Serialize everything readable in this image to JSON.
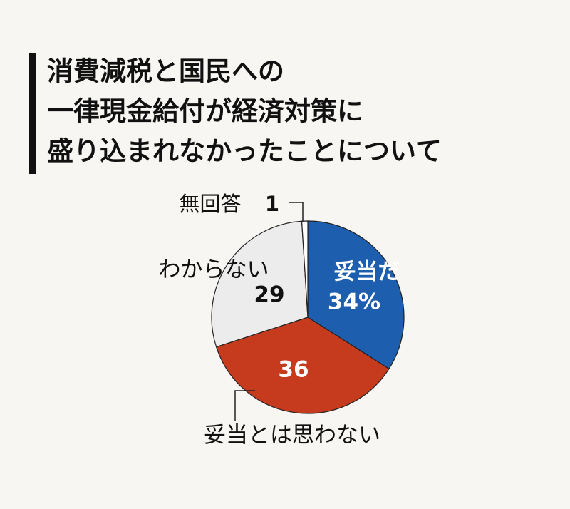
{
  "chart_data": {
    "type": "pie",
    "title_lines": [
      "消費減税と国民への",
      "一律現金給付が経済対策に",
      "盛り込まれなかったことについて"
    ],
    "categories": [
      "妥当だ",
      "妥当とは思わない",
      "わからない",
      "無回答"
    ],
    "values": [
      34,
      36,
      29,
      1
    ],
    "value_labels": [
      "34%",
      "36",
      "29",
      "1"
    ],
    "colors": [
      "#1d5fae",
      "#c63a1d",
      "#ececec",
      "#ffffff"
    ]
  }
}
